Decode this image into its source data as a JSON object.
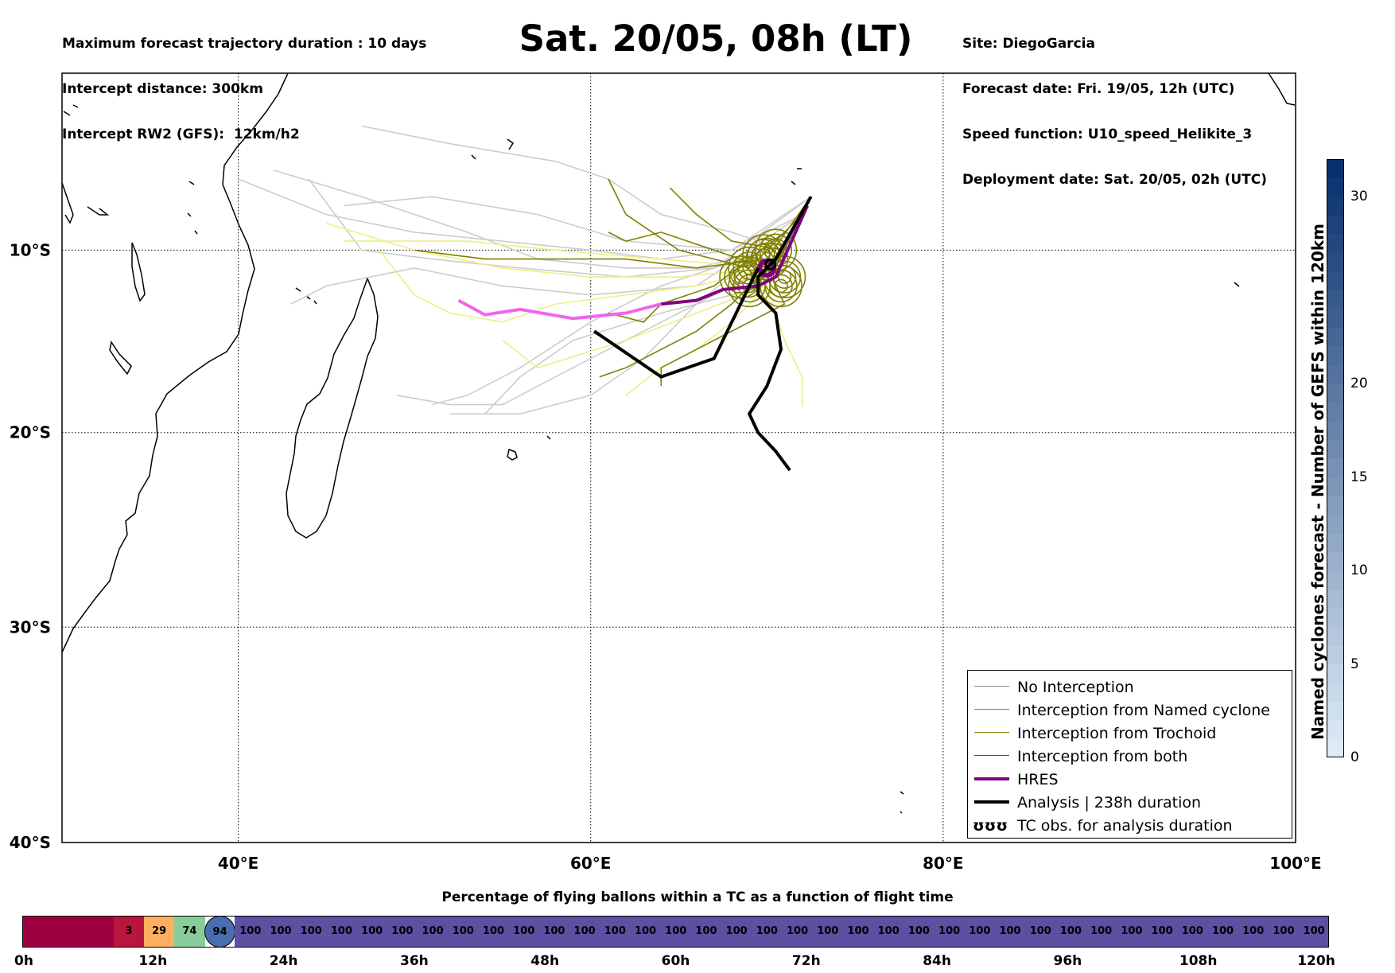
{
  "header_left": [
    "Maximum forecast trajectory duration : 10 days",
    "Intercept distance: 300km",
    "Intercept RW2 (GFS):  12km/h2"
  ],
  "title": "Sat. 20/05, 08h (LT)",
  "header_right": [
    "Site: DiegoGarcia",
    "Forecast date: Fri. 19/05, 12h (UTC)",
    "Speed function: U10_speed_Helikite_3",
    "Deployment date: Sat. 20/05, 02h (UTC)"
  ],
  "map": {
    "lon_range": [
      30,
      100
    ],
    "lat_range": [
      -40,
      0
    ],
    "lon_ticks": [
      {
        "v": 40,
        "label": "40°E"
      },
      {
        "v": 60,
        "label": "60°E"
      },
      {
        "v": 80,
        "label": "80°E"
      },
      {
        "v": 100,
        "label": "100°E"
      }
    ],
    "lat_ticks": [
      {
        "v": -10,
        "label": "10°S"
      },
      {
        "v": -20,
        "label": "20°S"
      },
      {
        "v": -30,
        "label": "30°S"
      },
      {
        "v": -40,
        "label": "40°S"
      }
    ],
    "grid": "dotted",
    "colors": {
      "no_interception": "#cccccc",
      "trochoid": "#808000",
      "light": "#eeee88",
      "hres": "#800080",
      "hres_light": "#ee66ee",
      "analysis": "#000000"
    },
    "analysis_track": [
      [
        72.5,
        -7.0
      ],
      [
        70.5,
        -10.5
      ],
      [
        69.5,
        -11.5
      ],
      [
        69.5,
        -12.5
      ],
      [
        70.5,
        -13.5
      ],
      [
        70.8,
        -15.5
      ],
      [
        70.0,
        -17.5
      ],
      [
        69.0,
        -19.0
      ],
      [
        69.5,
        -20.0
      ],
      [
        70.5,
        -21.0
      ],
      [
        71.3,
        -22.0
      ]
    ],
    "analysis_track2": [
      [
        69.5,
        -11.0
      ],
      [
        67.0,
        -16.0
      ],
      [
        64.0,
        -17.0
      ],
      [
        60.2,
        -14.5
      ]
    ],
    "hres_track": [
      [
        72.3,
        -7.5
      ],
      [
        70.5,
        -11.5
      ],
      [
        69.5,
        -12.0
      ],
      [
        67.5,
        -12.2
      ],
      [
        66.0,
        -12.8
      ],
      [
        64.0,
        -13.0
      ],
      [
        62.0,
        -13.5
      ],
      [
        59.0,
        -13.8
      ],
      [
        56.0,
        -13.3
      ],
      [
        54.0,
        -13.6
      ],
      [
        52.5,
        -12.8
      ]
    ],
    "gray_tracks": [
      [
        [
          72.5,
          -7.0
        ],
        [
          68,
          -10
        ],
        [
          64,
          -10.5
        ],
        [
          60,
          -10
        ],
        [
          55,
          -9.5
        ],
        [
          50,
          -9
        ],
        [
          45,
          -8
        ],
        [
          40,
          -6
        ]
      ],
      [
        [
          72.5,
          -7.0
        ],
        [
          67,
          -11
        ],
        [
          62,
          -11.5
        ],
        [
          56,
          -11
        ],
        [
          51,
          -10.5
        ],
        [
          47,
          -10
        ],
        [
          44,
          -6
        ]
      ],
      [
        [
          72,
          -8
        ],
        [
          66,
          -12
        ],
        [
          60,
          -12.5
        ],
        [
          55,
          -12
        ],
        [
          50,
          -11
        ],
        [
          45,
          -12
        ],
        [
          43,
          -13
        ]
      ],
      [
        [
          71,
          -9
        ],
        [
          66,
          -13
        ],
        [
          62,
          -15
        ],
        [
          58,
          -17
        ],
        [
          55,
          -18.5
        ],
        [
          52,
          -18.5
        ],
        [
          49,
          -18
        ]
      ],
      [
        [
          70,
          -10
        ],
        [
          64,
          -12
        ],
        [
          60,
          -14
        ],
        [
          56,
          -16.5
        ],
        [
          53,
          -18
        ],
        [
          51,
          -18.5
        ]
      ],
      [
        [
          70,
          -11
        ],
        [
          66,
          -13
        ],
        [
          63,
          -16
        ],
        [
          60,
          -18
        ],
        [
          56,
          -19
        ],
        [
          52,
          -19
        ]
      ],
      [
        [
          71,
          -10
        ],
        [
          68,
          -9
        ],
        [
          64,
          -8
        ],
        [
          61,
          -6
        ],
        [
          58,
          -5
        ],
        [
          52,
          -4
        ],
        [
          47,
          -3
        ]
      ],
      [
        [
          70,
          -10
        ],
        [
          66,
          -11
        ],
        [
          62,
          -11
        ],
        [
          57,
          -10.5
        ],
        [
          53,
          -9
        ],
        [
          47,
          -7
        ],
        [
          42,
          -5.5
        ]
      ],
      [
        [
          72,
          -8
        ],
        [
          68,
          -10
        ],
        [
          62,
          -9.5
        ],
        [
          57,
          -8
        ],
        [
          51,
          -7
        ],
        [
          46,
          -7.5
        ]
      ],
      [
        [
          70,
          -12
        ],
        [
          64,
          -13.5
        ],
        [
          59,
          -15
        ],
        [
          56,
          -17
        ],
        [
          54,
          -19
        ]
      ]
    ],
    "olive_tracks": [
      [
        [
          72.5,
          -7.0
        ],
        [
          70,
          -10.5
        ],
        [
          66,
          -11
        ],
        [
          62,
          -10.5
        ],
        [
          58,
          -10.5
        ],
        [
          54,
          -10.5
        ],
        [
          50,
          -10
        ]
      ],
      [
        [
          72,
          -8
        ],
        [
          69,
          -11
        ],
        [
          65,
          -10
        ],
        [
          62,
          -8
        ],
        [
          61,
          -6
        ]
      ],
      [
        [
          71,
          -9
        ],
        [
          67,
          -12
        ],
        [
          64,
          -13
        ],
        [
          63,
          -14
        ],
        [
          61,
          -13.5
        ]
      ],
      [
        [
          70,
          -11
        ],
        [
          68,
          -13
        ],
        [
          66,
          -14.5
        ],
        [
          64,
          -15.5
        ],
        [
          62,
          -16.5
        ],
        [
          60.5,
          -17
        ]
      ],
      [
        [
          70,
          -11
        ],
        [
          67,
          -10
        ],
        [
          64,
          -9
        ],
        [
          62,
          -9.5
        ],
        [
          61,
          -9
        ]
      ],
      [
        [
          70,
          -11
        ],
        [
          71,
          -13
        ],
        [
          68,
          -14.5
        ],
        [
          66,
          -15.5
        ],
        [
          64,
          -16.5
        ],
        [
          64,
          -17.5
        ]
      ],
      [
        [
          71,
          -10
        ],
        [
          68,
          -9.5
        ],
        [
          66,
          -8
        ],
        [
          64.5,
          -6.5
        ]
      ]
    ],
    "light_tracks": [
      [
        [
          70,
          -11
        ],
        [
          65,
          -11.5
        ],
        [
          60,
          -11.5
        ],
        [
          55,
          -11
        ],
        [
          50,
          -10
        ],
        [
          45,
          -8.5
        ]
      ],
      [
        [
          70,
          -11
        ],
        [
          66,
          -12
        ],
        [
          62,
          -12.5
        ],
        [
          58,
          -13
        ],
        [
          55,
          -14
        ],
        [
          52,
          -13.5
        ],
        [
          50,
          -12.5
        ],
        [
          48,
          -10
        ]
      ],
      [
        [
          70,
          -12
        ],
        [
          68,
          -14
        ],
        [
          66,
          -15.5
        ],
        [
          64,
          -16.5
        ],
        [
          62,
          -18
        ]
      ],
      [
        [
          70,
          -12
        ],
        [
          71,
          -15
        ],
        [
          72,
          -17
        ],
        [
          72,
          -18.6
        ]
      ],
      [
        [
          70,
          -11
        ],
        [
          64,
          -10.5
        ],
        [
          58,
          -10
        ],
        [
          53,
          -9.5
        ],
        [
          46,
          -9.5
        ]
      ],
      [
        [
          70,
          -12
        ],
        [
          66,
          -13.5
        ],
        [
          62,
          -15
        ],
        [
          57,
          -16.5
        ],
        [
          55,
          -15
        ]
      ]
    ],
    "loops_center": [
      [
        70,
        -10.5
      ],
      [
        69,
        -11
      ],
      [
        71,
        -11.5
      ],
      [
        69,
        -12
      ],
      [
        70.5,
        -10
      ],
      [
        68.5,
        -11.5
      ],
      [
        70.8,
        -12
      ],
      [
        69.8,
        -10.3
      ]
    ]
  },
  "legend": [
    {
      "label": "No Interception",
      "color": "#888888",
      "width": 1.5,
      "type": "line"
    },
    {
      "label": "Interception from Named cyclone",
      "color": "#e06020",
      "width": 1.5,
      "type": "line"
    },
    {
      "label": "Interception from Trochoid",
      "color": "#808000",
      "width": 1.5,
      "type": "line"
    },
    {
      "label": "Interception from both",
      "color": "#008000",
      "width": 1.5,
      "type": "line"
    },
    {
      "label": "HRES",
      "color": "#800080",
      "width": 4,
      "type": "line"
    },
    {
      "label": "Analysis | 238h duration",
      "color": "#000000",
      "width": 4,
      "type": "line"
    },
    {
      "label": "TC obs. for analysis duration",
      "color": "#000000",
      "width": 1.5,
      "type": "glyph",
      "glyph": "ʊʊʊ"
    }
  ],
  "colorbar": {
    "title": "Named cyclones forecast - Number of GEFS within 120km",
    "range": [
      0,
      32
    ],
    "ticks": [
      0,
      5,
      10,
      15,
      20,
      30
    ],
    "color_low": "#deebf7",
    "color_high": "#08306b"
  },
  "timeline": {
    "title": "Percentage of flying ballons within a TC as a function of flight time",
    "ticks": [
      "0h",
      "12h",
      "24h",
      "36h",
      "48h",
      "60h",
      "72h",
      "84h",
      "96h",
      "108h",
      "120h"
    ],
    "segments": [
      {
        "label": "",
        "span": 3,
        "color": "#9e0142"
      },
      {
        "label": "3",
        "span": 1,
        "color": "#b8163e"
      },
      {
        "label": "29",
        "span": 1,
        "color": "#fdae61"
      },
      {
        "label": "74",
        "span": 1,
        "color": "#88cc99"
      },
      {
        "label": "94",
        "span": 1,
        "color": "#4a6cb0",
        "circled": true
      },
      {
        "label": "100",
        "span": 1,
        "color": "#5e4fa2"
      },
      {
        "label": "100",
        "span": 1,
        "color": "#5e4fa2"
      },
      {
        "label": "100",
        "span": 1,
        "color": "#5e4fa2"
      },
      {
        "label": "100",
        "span": 1,
        "color": "#5e4fa2"
      },
      {
        "label": "100",
        "span": 1,
        "color": "#5e4fa2"
      },
      {
        "label": "100",
        "span": 1,
        "color": "#5e4fa2"
      },
      {
        "label": "100",
        "span": 1,
        "color": "#5e4fa2"
      },
      {
        "label": "100",
        "span": 1,
        "color": "#5e4fa2"
      },
      {
        "label": "100",
        "span": 1,
        "color": "#5e4fa2"
      },
      {
        "label": "100",
        "span": 1,
        "color": "#5e4fa2"
      },
      {
        "label": "100",
        "span": 1,
        "color": "#5e4fa2"
      },
      {
        "label": "100",
        "span": 1,
        "color": "#5e4fa2"
      },
      {
        "label": "100",
        "span": 1,
        "color": "#5e4fa2"
      },
      {
        "label": "100",
        "span": 1,
        "color": "#5e4fa2"
      },
      {
        "label": "100",
        "span": 1,
        "color": "#5e4fa2"
      },
      {
        "label": "100",
        "span": 1,
        "color": "#5e4fa2"
      },
      {
        "label": "100",
        "span": 1,
        "color": "#5e4fa2"
      },
      {
        "label": "100",
        "span": 1,
        "color": "#5e4fa2"
      },
      {
        "label": "100",
        "span": 1,
        "color": "#5e4fa2"
      },
      {
        "label": "100",
        "span": 1,
        "color": "#5e4fa2"
      },
      {
        "label": "100",
        "span": 1,
        "color": "#5e4fa2"
      },
      {
        "label": "100",
        "span": 1,
        "color": "#5e4fa2"
      },
      {
        "label": "100",
        "span": 1,
        "color": "#5e4fa2"
      },
      {
        "label": "100",
        "span": 1,
        "color": "#5e4fa2"
      },
      {
        "label": "100",
        "span": 1,
        "color": "#5e4fa2"
      },
      {
        "label": "100",
        "span": 1,
        "color": "#5e4fa2"
      },
      {
        "label": "100",
        "span": 1,
        "color": "#5e4fa2"
      },
      {
        "label": "100",
        "span": 1,
        "color": "#5e4fa2"
      },
      {
        "label": "100",
        "span": 1,
        "color": "#5e4fa2"
      },
      {
        "label": "100",
        "span": 1,
        "color": "#5e4fa2"
      },
      {
        "label": "100",
        "span": 1,
        "color": "#5e4fa2"
      },
      {
        "label": "100",
        "span": 1,
        "color": "#5e4fa2"
      },
      {
        "label": "100",
        "span": 1,
        "color": "#5e4fa2"
      },
      {
        "label": "100",
        "span": 1,
        "color": "#5e4fa2"
      },
      {
        "label": "100",
        "span": 1,
        "color": "#5e4fa2"
      },
      {
        "label": "100",
        "span": 1,
        "color": "#5e4fa2"
      }
    ]
  }
}
